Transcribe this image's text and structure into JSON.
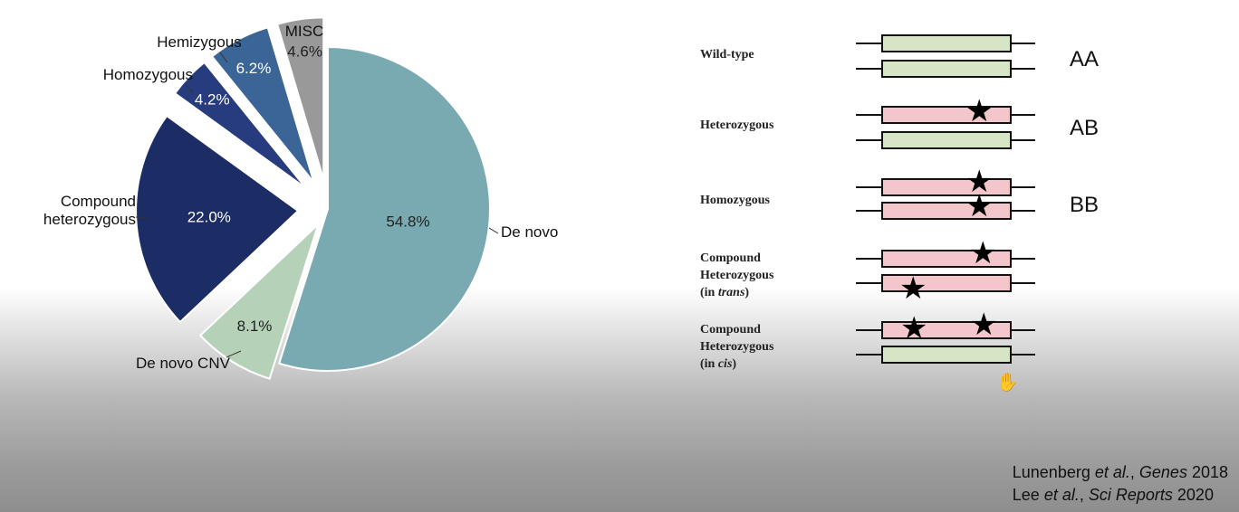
{
  "chart_data": {
    "type": "pie",
    "slices": [
      {
        "label": "De novo",
        "value": 54.8,
        "value_label": "54.8%",
        "color": "#79aab2"
      },
      {
        "label": "De novo CNV",
        "value": 8.1,
        "value_label": "8.1%",
        "color": "#b5d2b8"
      },
      {
        "label": "Compound heterozygous",
        "value": 22.0,
        "value_label": "22.0%",
        "color": "#1c2c64"
      },
      {
        "label": "Homozygous",
        "value": 4.2,
        "value_label": "4.2%",
        "color": "#273c7e"
      },
      {
        "label": "Hemizygous",
        "value": 6.2,
        "value_label": "6.2%",
        "color": "#3a6596"
      },
      {
        "label": "MISC",
        "value": 4.6,
        "value_label": "4.6%",
        "color": "#999999"
      }
    ]
  },
  "diagram": {
    "rows": [
      {
        "label_lines": [
          "Wild-type"
        ],
        "genotype": "AA"
      },
      {
        "label_lines": [
          "Heterozygous"
        ],
        "genotype": "AB"
      },
      {
        "label_lines": [
          "Homozygous"
        ],
        "genotype": "BB"
      },
      {
        "label_lines": [
          "Compound",
          "Heterozygous",
          "(in trans)"
        ],
        "genotype": ""
      },
      {
        "label_lines": [
          "Compound",
          "Heterozygous",
          "(in cis)"
        ],
        "genotype": ""
      }
    ],
    "wild_color": "#d6e6c4",
    "mutant_color": "#f2c6cb"
  },
  "citations": [
    {
      "a": "Lunenberg ",
      "b": "et al., Genes",
      "c": " 2018"
    },
    {
      "a": "Lee ",
      "b": "et al., Sci Reports",
      "c": " 2020"
    }
  ]
}
